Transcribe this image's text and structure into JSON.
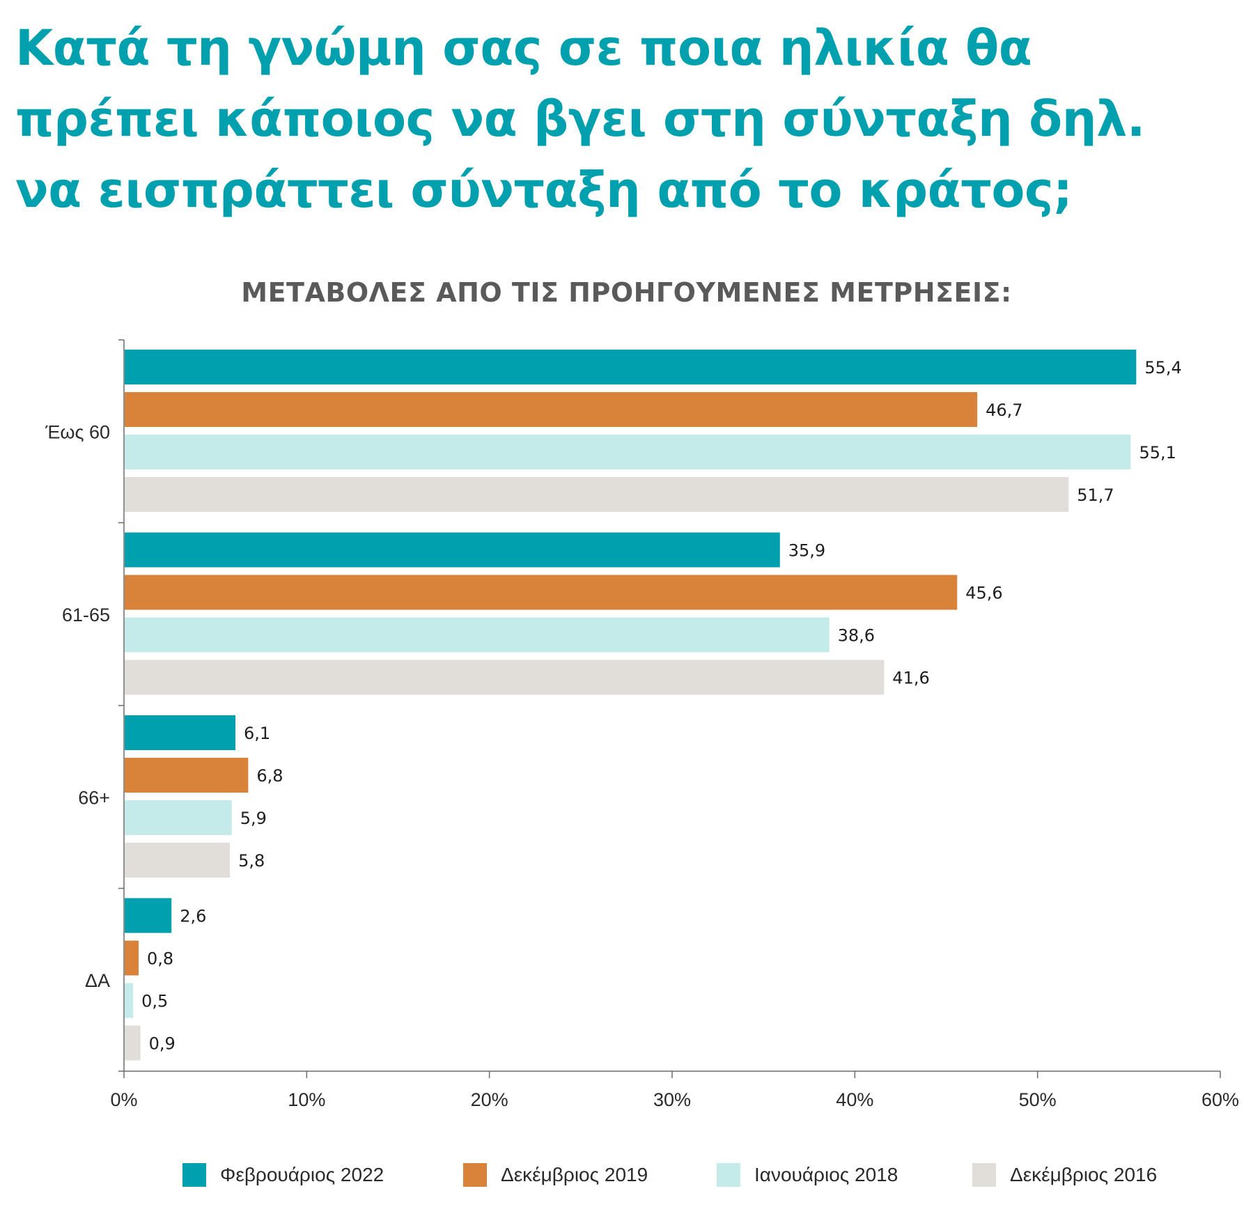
{
  "title_lines": [
    "Κατά τη γνώμη σας σε ποια ηλικία θα",
    "πρέπει κάποιος να βγει στη σύνταξη δηλ.",
    "να εισπράττει σύνταξη από το κράτος;"
  ],
  "subtitle": "ΜΕΤΑΒΟΛΕΣ ΑΠΟ ΤΙΣ ΠΡΟΗΓΟΥΜΕΝΕΣ ΜΕΤΡΗΣΕΙΣ:",
  "chart_data": {
    "type": "bar",
    "orientation": "horizontal",
    "title": "Κατά τη γνώμη σας σε ποια ηλικία θα πρέπει κάποιος να βγει στη σύνταξη δηλ. να εισπράττει σύνταξη από το κράτος;",
    "subtitle": "ΜΕΤΑΒΟΛΕΣ ΑΠΟ ΤΙΣ ΠΡΟΗΓΟΥΜΕΝΕΣ ΜΕΤΡΗΣΕΙΣ:",
    "categories": [
      "Έως 60",
      "61-65",
      "66+",
      "ΔΑ"
    ],
    "series": [
      {
        "name": "Φεβρουάριος 2022",
        "color": "#00a0ae",
        "values": [
          55.4,
          35.9,
          6.1,
          2.6
        ],
        "labels": [
          "55,4",
          "35,9",
          "6,1",
          "2,6"
        ]
      },
      {
        "name": "Δεκέμβριος 2019",
        "color": "#d9823a",
        "values": [
          46.7,
          45.6,
          6.8,
          0.8
        ],
        "labels": [
          "46,7",
          "45,6",
          "6,8",
          "0,8"
        ]
      },
      {
        "name": "Ιανουάριος 2018",
        "color": "#c4ebea",
        "values": [
          55.1,
          38.6,
          5.9,
          0.5
        ],
        "labels": [
          "55,1",
          "38,6",
          "5,9",
          "0,5"
        ]
      },
      {
        "name": "Δεκέμβριος 2016",
        "color": "#e1ddd9",
        "values": [
          51.7,
          41.6,
          5.8,
          0.9
        ],
        "labels": [
          "51,7",
          "41,6",
          "5,8",
          "0,9"
        ]
      }
    ],
    "xlim": [
      0,
      60
    ],
    "xticks": [
      0,
      10,
      20,
      30,
      40,
      50,
      60
    ],
    "xtick_labels": [
      "0%",
      "10%",
      "20%",
      "30%",
      "40%",
      "50%",
      "60%"
    ],
    "xlabel": "",
    "ylabel": "",
    "grid": false,
    "legend_position": "bottom"
  }
}
